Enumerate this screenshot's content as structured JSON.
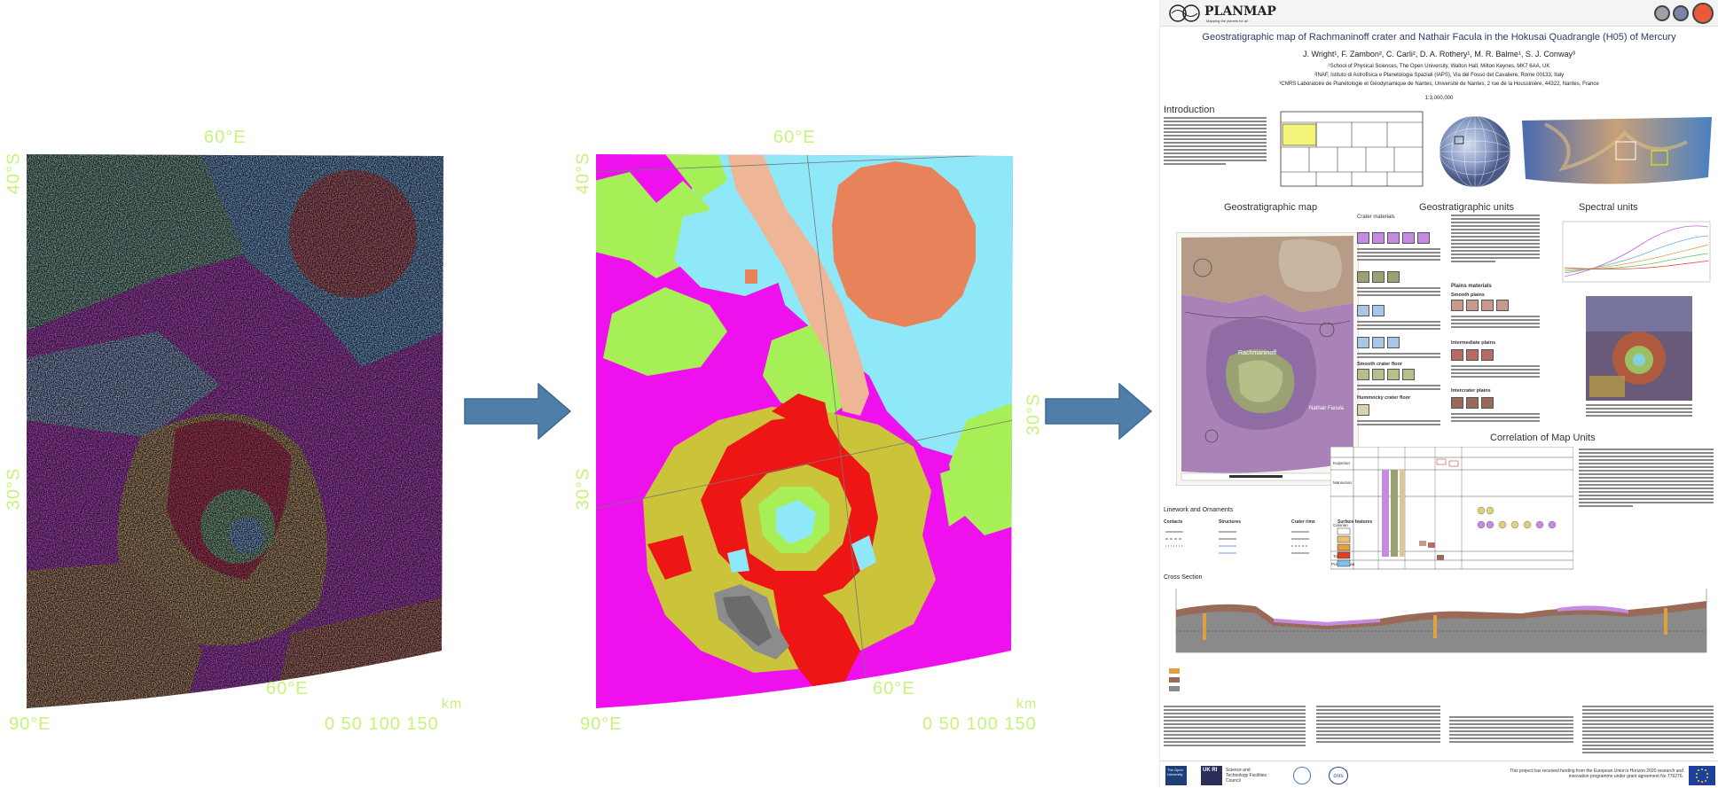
{
  "spectral_map": {
    "labels": {
      "top": "60°E",
      "left_top": "40°S",
      "left_mid": "30°S",
      "bottom_lon": "60°E",
      "bottom_left": "90°E",
      "scale": "0  50  100  150",
      "km": "km"
    }
  },
  "classified_map": {
    "labels": {
      "top": "60°E",
      "left_top": "40°S",
      "left_mid": "30°S",
      "right_mid": "30°S",
      "bottom_lon": "60°E",
      "bottom_left": "90°E",
      "scale": "0  50  100  150",
      "km": "km"
    }
  },
  "poster": {
    "logo": "PLANMAP",
    "logo_sub": "Mapping the planets for all",
    "title": "Geostratigraphic map of Rachmaninoff crater and Nathair Facula in the Hokusai Quadrangle (H05) of Mercury",
    "authors": "J. Wright¹, F. Zambon², C. Carli², D. A. Rothery¹, M. R. Balme¹, S. J. Conway³",
    "affil1": "¹School of Physical Sciences, The Open University, Walton Hall, Milton Keynes, MK7 6AA, UK",
    "affil2": "²INAF, Istituto di Astrofisica e Planetologia Spaziali (IAPS), Via del Fosso del Cavaliere, Rome 00133, Italy",
    "affil3": "³CNRS Laboratoire de Planétologie et Géodynamique de Nantes, Université de Nantes, 2 rue de la Houssinière, 44322, Nantes, France",
    "scale": "1:3,000,000",
    "introduction": "Introduction",
    "geo_map": "Geostratigraphic map",
    "geo_units": "Geostratigraphic units",
    "spectral_units": "Spectral units",
    "crater_materials": "Crater materials",
    "plains_materials": "Plains materials",
    "smooth_plains": "Smooth plains",
    "intermediate_plains": "Intermediate plains",
    "intercrater_plains": "Intercrater plains",
    "smooth_crater_floor": "Smooth crater floor",
    "hummocky_crater_floor": "Hummocky crater floor",
    "correlation": "Correlation of Map Units",
    "linework": "Linework and Ornaments",
    "contacts": "Contacts",
    "structures": "Structures",
    "crater_rims": "Crater rims",
    "surface_features": "Surface features",
    "cross_section": "Cross Section",
    "ages": [
      "Kuiperian",
      "Mansurian",
      "Calorian",
      "Tolstojan",
      "Pre-Tolstojan"
    ],
    "map_label_rach": "Rachmaninoff",
    "map_label_nathair": "Nathair Facula",
    "funding": "This project has received funding from the European Union's Horizon 2020 research and innovation programme under grant agreement No 776276.",
    "partner1": "The Open University",
    "partner2": "UK RI",
    "partner3": "Science and Technology Facilities Council",
    "partner4": "cnrs"
  },
  "colors": {
    "arrow": "#4f7fa9",
    "arrow_edge": "#3d6a92",
    "label": "#c7f37a",
    "magenta": "#ee11ee",
    "cyan": "#8fe8f8",
    "green": "#a7ef57",
    "orange": "#e8825a",
    "salmon": "#eeb596",
    "olive": "#cbc43b",
    "red": "#ee1515"
  }
}
